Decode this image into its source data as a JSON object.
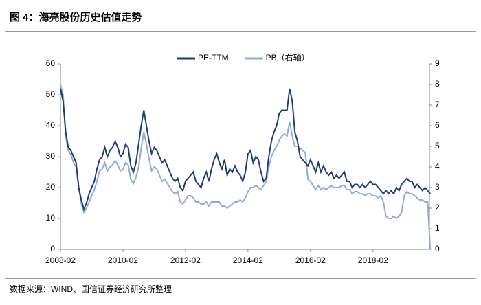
{
  "header": {
    "title": "图 4：海亮股份历史估值走势"
  },
  "source": "数据来源：WIND、国信证券经济研究所整理",
  "chart_data": {
    "type": "line",
    "x": [
      "2008-02",
      "2008-03",
      "2008-04",
      "2008-05",
      "2008-06",
      "2008-07",
      "2008-08",
      "2008-09",
      "2008-10",
      "2008-11",
      "2008-12",
      "2009-01",
      "2009-02",
      "2009-03",
      "2009-04",
      "2009-05",
      "2009-06",
      "2009-07",
      "2009-08",
      "2009-09",
      "2009-10",
      "2009-11",
      "2009-12",
      "2010-01",
      "2010-02",
      "2010-03",
      "2010-04",
      "2010-05",
      "2010-06",
      "2010-07",
      "2010-08",
      "2010-09",
      "2010-10",
      "2010-11",
      "2010-12",
      "2011-01",
      "2011-02",
      "2011-03",
      "2011-04",
      "2011-05",
      "2011-06",
      "2011-07",
      "2011-08",
      "2011-09",
      "2011-10",
      "2011-11",
      "2011-12",
      "2012-01",
      "2012-02",
      "2012-03",
      "2012-04",
      "2012-05",
      "2012-06",
      "2012-07",
      "2012-08",
      "2012-09",
      "2012-10",
      "2012-11",
      "2012-12",
      "2013-01",
      "2013-02",
      "2013-03",
      "2013-04",
      "2013-05",
      "2013-06",
      "2013-07",
      "2013-08",
      "2013-09",
      "2013-10",
      "2013-11",
      "2013-12",
      "2014-01",
      "2014-02",
      "2014-03",
      "2014-04",
      "2014-05",
      "2014-06",
      "2014-07",
      "2014-08",
      "2014-09",
      "2014-10",
      "2014-11",
      "2014-12",
      "2015-01",
      "2015-02",
      "2015-03",
      "2015-04",
      "2015-05",
      "2015-06",
      "2015-07",
      "2015-08",
      "2015-09",
      "2015-10",
      "2015-11",
      "2015-12",
      "2016-01",
      "2016-02",
      "2016-03",
      "2016-04",
      "2016-05",
      "2016-06",
      "2016-07",
      "2016-08",
      "2016-09",
      "2016-10",
      "2016-11",
      "2016-12",
      "2017-01",
      "2017-02",
      "2017-03",
      "2017-04",
      "2017-05",
      "2017-06",
      "2017-07",
      "2017-08",
      "2017-09",
      "2017-10",
      "2017-11",
      "2017-12",
      "2018-01",
      "2018-02",
      "2018-03",
      "2018-04",
      "2018-05",
      "2018-06",
      "2018-07",
      "2018-08",
      "2018-09",
      "2018-10",
      "2018-11",
      "2018-12",
      "2019-01",
      "2019-02",
      "2019-03",
      "2019-04",
      "2019-05",
      "2019-06",
      "2019-07",
      "2019-08",
      "2019-09",
      "2019-10",
      "2019-11",
      "2019-12"
    ],
    "xticks": [
      "2008-02",
      "2010-02",
      "2012-02",
      "2014-02",
      "2016-02",
      "2018-02"
    ],
    "series": [
      {
        "name": "PE-TTM",
        "color": "#1f3b73",
        "values": [
          52,
          48,
          38,
          33,
          32,
          30,
          28,
          20,
          16,
          13,
          15,
          18,
          20,
          22,
          26,
          29,
          30,
          33,
          30,
          32,
          33,
          35,
          33,
          30,
          31,
          34,
          33,
          27,
          25,
          28,
          34,
          40,
          45,
          40,
          35,
          31,
          33,
          32,
          30,
          28,
          29,
          27,
          25,
          23,
          22,
          23,
          20,
          19,
          22,
          23,
          24,
          25,
          22,
          21,
          20,
          23,
          25,
          22,
          26,
          29,
          31,
          28,
          26,
          29,
          24,
          26,
          25,
          27,
          25,
          24,
          22,
          25,
          31,
          32,
          28,
          30,
          29,
          25,
          22,
          23,
          30,
          35,
          38,
          40,
          44,
          45,
          45,
          45,
          52,
          48,
          38,
          35,
          30,
          29,
          28,
          27,
          29,
          27,
          25,
          28,
          25,
          27,
          25,
          24,
          25,
          23,
          24,
          23,
          24,
          25,
          22,
          22,
          20,
          21,
          21,
          20,
          21,
          20,
          21,
          22,
          21,
          21,
          20,
          19,
          18,
          19,
          18,
          19,
          18,
          20,
          19,
          21,
          22,
          23,
          22,
          22,
          20,
          21,
          20,
          19,
          20,
          19,
          18
        ]
      },
      {
        "name": "PB（右轴）",
        "color": "#8faadc",
        "axis": "y2",
        "values": [
          8,
          7.5,
          5.5,
          4.8,
          4.6,
          4.2,
          4,
          3,
          2.2,
          1.8,
          2,
          2.3,
          2.6,
          2.9,
          3.3,
          3.8,
          3.9,
          4.2,
          3.8,
          4,
          4.1,
          4.3,
          4.1,
          3.8,
          3.9,
          4.2,
          4.1,
          3.4,
          3.2,
          3.5,
          4,
          4.9,
          5.7,
          5.1,
          4.4,
          3.8,
          4,
          3.9,
          3.6,
          3.3,
          3.4,
          3.2,
          3,
          2.8,
          2.7,
          2.8,
          2.3,
          2.2,
          2.4,
          2.6,
          2.6,
          2.5,
          2.3,
          2.3,
          2.2,
          2.2,
          2.3,
          2.1,
          2.3,
          2.3,
          2.3,
          2.3,
          2.1,
          2.1,
          2.0,
          2.1,
          2.2,
          2.3,
          2.3,
          2.4,
          2.3,
          2.5,
          2.8,
          3.0,
          3.0,
          3.1,
          3.0,
          2.9,
          3.1,
          3.3,
          4.0,
          4.5,
          4.8,
          5.0,
          5.3,
          5.5,
          5.6,
          5.5,
          6.2,
          5.5,
          5.0,
          5.0,
          4.9,
          4.8,
          4.7,
          3.4,
          3.3,
          3.1,
          2.9,
          3.1,
          2.9,
          3.0,
          2.9,
          3.0,
          3.1,
          3.0,
          3.0,
          3.0,
          3.1,
          3.1,
          2.9,
          2.9,
          2.7,
          2.8,
          2.8,
          2.7,
          2.7,
          2.6,
          2.7,
          2.7,
          2.6,
          2.6,
          2.5,
          2.6,
          2.3,
          1.6,
          1.5,
          1.5,
          1.6,
          1.5,
          1.6,
          1.8,
          2.6,
          2.8,
          2.7,
          2.7,
          2.6,
          2.5,
          2.4,
          2.4,
          2.3,
          2.3,
          0
        ]
      }
    ],
    "ylim": [
      0,
      60
    ],
    "yticks": [
      0,
      10,
      20,
      30,
      40,
      50,
      60
    ],
    "y2lim": [
      0,
      9
    ],
    "y2ticks": [
      0,
      1,
      2,
      3,
      4,
      5,
      6,
      7,
      8,
      9
    ],
    "legend": "top"
  }
}
